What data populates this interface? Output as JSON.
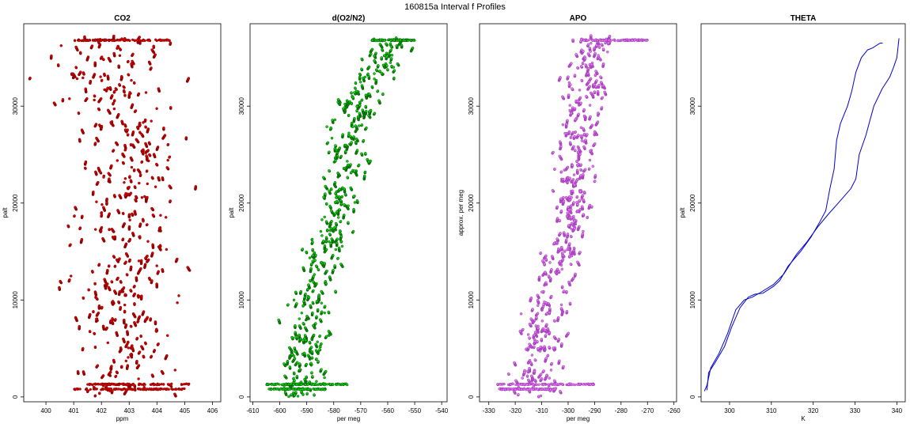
{
  "figure": {
    "title": "160815a   Interval f Profiles"
  },
  "chart_data": [
    {
      "id": "co2",
      "type": "scatter",
      "title": "CO2",
      "xlabel": "ppm",
      "ylabel": "palt",
      "xlim": [
        399.2,
        406.3
      ],
      "ylim": [
        -500,
        38500
      ],
      "xticks": [
        400,
        401,
        402,
        403,
        404,
        405,
        406
      ],
      "yticks": [
        0,
        10000,
        20000,
        30000
      ],
      "color": "#e00000",
      "edge_color": "#7a0000",
      "center_profile": [
        [
          0,
          402.8
        ],
        [
          3000,
          402.9
        ],
        [
          6000,
          403.0
        ],
        [
          9000,
          402.8
        ],
        [
          12000,
          402.6
        ],
        [
          15000,
          403.6
        ],
        [
          18000,
          402.8
        ],
        [
          21000,
          403.2
        ],
        [
          24000,
          403.0
        ],
        [
          27000,
          403.1
        ],
        [
          30000,
          402.6
        ],
        [
          33000,
          402.2
        ],
        [
          36000,
          402.6
        ],
        [
          37000,
          402.8
        ]
      ],
      "spread": [
        [
          0,
          1.0
        ],
        [
          6000,
          1.0
        ],
        [
          10000,
          1.2
        ],
        [
          15000,
          1.1
        ],
        [
          20000,
          0.9
        ],
        [
          25000,
          0.9
        ],
        [
          30000,
          1.2
        ],
        [
          33000,
          1.5
        ],
        [
          37000,
          1.1
        ]
      ],
      "bands": [
        [
          800,
          401.0,
          405.0
        ],
        [
          1300,
          401.5,
          405.2
        ],
        [
          36800,
          401.0,
          404.5
        ]
      ],
      "n_points": 1700
    },
    {
      "id": "o2n2",
      "type": "scatter",
      "title": "d(O2/N2)",
      "xlabel": "per meg",
      "ylabel": "palt",
      "xlim": [
        -611,
        -538
      ],
      "ylim": [
        -500,
        38500
      ],
      "xticks": [
        -610,
        -600,
        -590,
        -580,
        -570,
        -560,
        -550,
        -540
      ],
      "yticks": [
        0,
        10000,
        20000,
        30000
      ],
      "color": "#00e000",
      "edge_color": "#0a4a0a",
      "center_profile": [
        [
          0,
          -592
        ],
        [
          5000,
          -591
        ],
        [
          10000,
          -588
        ],
        [
          15000,
          -583
        ],
        [
          20000,
          -578
        ],
        [
          25000,
          -575
        ],
        [
          30000,
          -572
        ],
        [
          33000,
          -566
        ],
        [
          36000,
          -558
        ],
        [
          37000,
          -556
        ]
      ],
      "spread": [
        [
          0,
          4.5
        ],
        [
          10000,
          5.0
        ],
        [
          20000,
          4.5
        ],
        [
          30000,
          4.5
        ],
        [
          37000,
          4.0
        ]
      ],
      "bands": [
        [
          800,
          -604,
          -583
        ],
        [
          1300,
          -605,
          -575
        ],
        [
          36800,
          -566,
          -550
        ]
      ],
      "n_points": 1700
    },
    {
      "id": "apo",
      "type": "scatter",
      "title": "APO",
      "xlabel": "per meg",
      "ylabel": "approx. per meg",
      "xlim": [
        -333.5,
        -259
      ],
      "ylim": [
        -500,
        38500
      ],
      "xticks": [
        -330,
        -320,
        -310,
        -300,
        -290,
        -280,
        -270,
        -260
      ],
      "yticks": [
        0,
        10000,
        20000,
        30000
      ],
      "color": "#e27ce8",
      "edge_color": "#9b30b8",
      "center_profile": [
        [
          0,
          -312
        ],
        [
          5000,
          -311
        ],
        [
          10000,
          -307
        ],
        [
          15000,
          -302
        ],
        [
          20000,
          -299
        ],
        [
          25000,
          -296
        ],
        [
          30000,
          -296
        ],
        [
          33000,
          -292
        ],
        [
          36000,
          -290
        ],
        [
          37000,
          -288
        ]
      ],
      "spread": [
        [
          0,
          5.0
        ],
        [
          10000,
          5.5
        ],
        [
          20000,
          5.0
        ],
        [
          30000,
          5.0
        ],
        [
          37000,
          5.0
        ]
      ],
      "bands": [
        [
          800,
          -326,
          -305
        ],
        [
          1300,
          -327,
          -290
        ],
        [
          36800,
          -295,
          -270
        ]
      ],
      "n_points": 1700
    },
    {
      "id": "theta",
      "type": "line",
      "title": "THETA",
      "xlabel": "K",
      "ylabel": "palt",
      "xlim": [
        293.2,
        342
      ],
      "ylim": [
        -500,
        38500
      ],
      "xticks": [
        300,
        310,
        320,
        330,
        340
      ],
      "yticks": [
        0,
        10000,
        20000,
        30000
      ],
      "color": "#0000cc",
      "series": [
        {
          "points": [
            [
              294.6,
              700
            ],
            [
              295.0,
              2500
            ],
            [
              296.5,
              3500
            ],
            [
              298.8,
              5200
            ],
            [
              300.5,
              7200
            ],
            [
              302.5,
              9200
            ],
            [
              304.5,
              10300
            ],
            [
              306.0,
              10600
            ],
            [
              308.0,
              10700
            ],
            [
              310.5,
              11400
            ],
            [
              312.0,
              12000
            ],
            [
              314.0,
              13500
            ],
            [
              317.0,
              15000
            ],
            [
              319.5,
              16500
            ],
            [
              321.5,
              18000
            ],
            [
              323.0,
              19200
            ],
            [
              324.0,
              21500
            ],
            [
              325.0,
              23500
            ],
            [
              325.6,
              26500
            ],
            [
              326.5,
              28200
            ],
            [
              328.2,
              30000
            ],
            [
              329.2,
              31500
            ],
            [
              330.2,
              33500
            ],
            [
              331.5,
              35000
            ],
            [
              333.0,
              35800
            ],
            [
              334.2,
              36000
            ],
            [
              336.0,
              36500
            ],
            [
              336.6,
              36500
            ]
          ]
        },
        {
          "points": [
            [
              294.0,
              600
            ],
            [
              294.6,
              1200
            ],
            [
              295.5,
              3000
            ],
            [
              297.5,
              4500
            ],
            [
              299.5,
              6500
            ],
            [
              301.5,
              9000
            ],
            [
              303.5,
              10000
            ],
            [
              305.5,
              10300
            ],
            [
              307.5,
              10800
            ],
            [
              310.5,
              11600
            ],
            [
              313.0,
              12700
            ],
            [
              316.0,
              14700
            ],
            [
              318.5,
              16000
            ],
            [
              321.0,
              17500
            ],
            [
              323.5,
              18800
            ],
            [
              326.0,
              20000
            ],
            [
              329.0,
              21500
            ],
            [
              330.2,
              22500
            ],
            [
              331.0,
              25000
            ],
            [
              332.6,
              27000
            ],
            [
              334.5,
              30000
            ],
            [
              336.5,
              31800
            ],
            [
              338.3,
              33000
            ],
            [
              339.2,
              34000
            ],
            [
              340.0,
              35000
            ],
            [
              340.5,
              37000
            ]
          ]
        }
      ]
    }
  ]
}
